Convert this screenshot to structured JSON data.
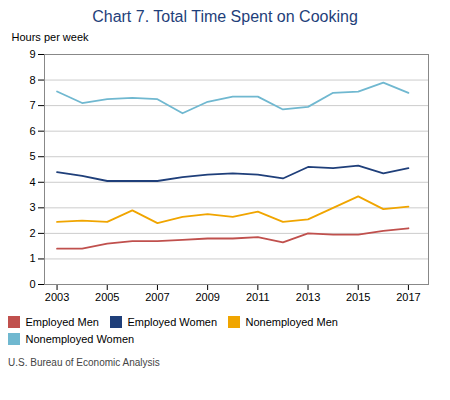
{
  "chart_data": {
    "type": "line",
    "title": "Chart 7. Total Time Spent on Cooking",
    "y_label": "Hours per week",
    "source": "U.S. Bureau of Economic Analysis",
    "x": [
      2003,
      2004,
      2005,
      2006,
      2007,
      2008,
      2009,
      2010,
      2011,
      2012,
      2013,
      2014,
      2015,
      2016,
      2017
    ],
    "series": [
      {
        "name": "Employed Men",
        "color": "#c0504d",
        "values": [
          1.4,
          1.4,
          1.6,
          1.7,
          1.7,
          1.75,
          1.8,
          1.8,
          1.85,
          1.65,
          2.0,
          1.95,
          1.95,
          2.1,
          2.2
        ]
      },
      {
        "name": "Employed Women",
        "color": "#1f3f7a",
        "values": [
          4.4,
          4.25,
          4.05,
          4.05,
          4.05,
          4.2,
          4.3,
          4.35,
          4.3,
          4.15,
          4.6,
          4.55,
          4.65,
          4.35,
          4.55
        ]
      },
      {
        "name": "Nonemployed Men",
        "color": "#f0a500",
        "values": [
          2.45,
          2.5,
          2.45,
          2.9,
          2.4,
          2.65,
          2.75,
          2.65,
          2.85,
          2.45,
          2.55,
          3.0,
          3.45,
          2.95,
          3.05
        ]
      },
      {
        "name": "Nonemployed Women",
        "color": "#70b8d0",
        "values": [
          7.55,
          7.1,
          7.25,
          7.3,
          7.25,
          6.7,
          7.15,
          7.35,
          7.35,
          6.85,
          6.95,
          7.5,
          7.55,
          7.9,
          7.5
        ]
      }
    ],
    "xlim": [
      2002.5,
      2017.8
    ],
    "xticks": [
      2003,
      2005,
      2007,
      2009,
      2011,
      2013,
      2015,
      2017
    ],
    "ylim": [
      0,
      9
    ],
    "yticks": [
      0,
      1,
      2,
      3,
      4,
      5,
      6,
      7,
      8,
      9
    ],
    "grid": true,
    "legend": "bottom"
  }
}
